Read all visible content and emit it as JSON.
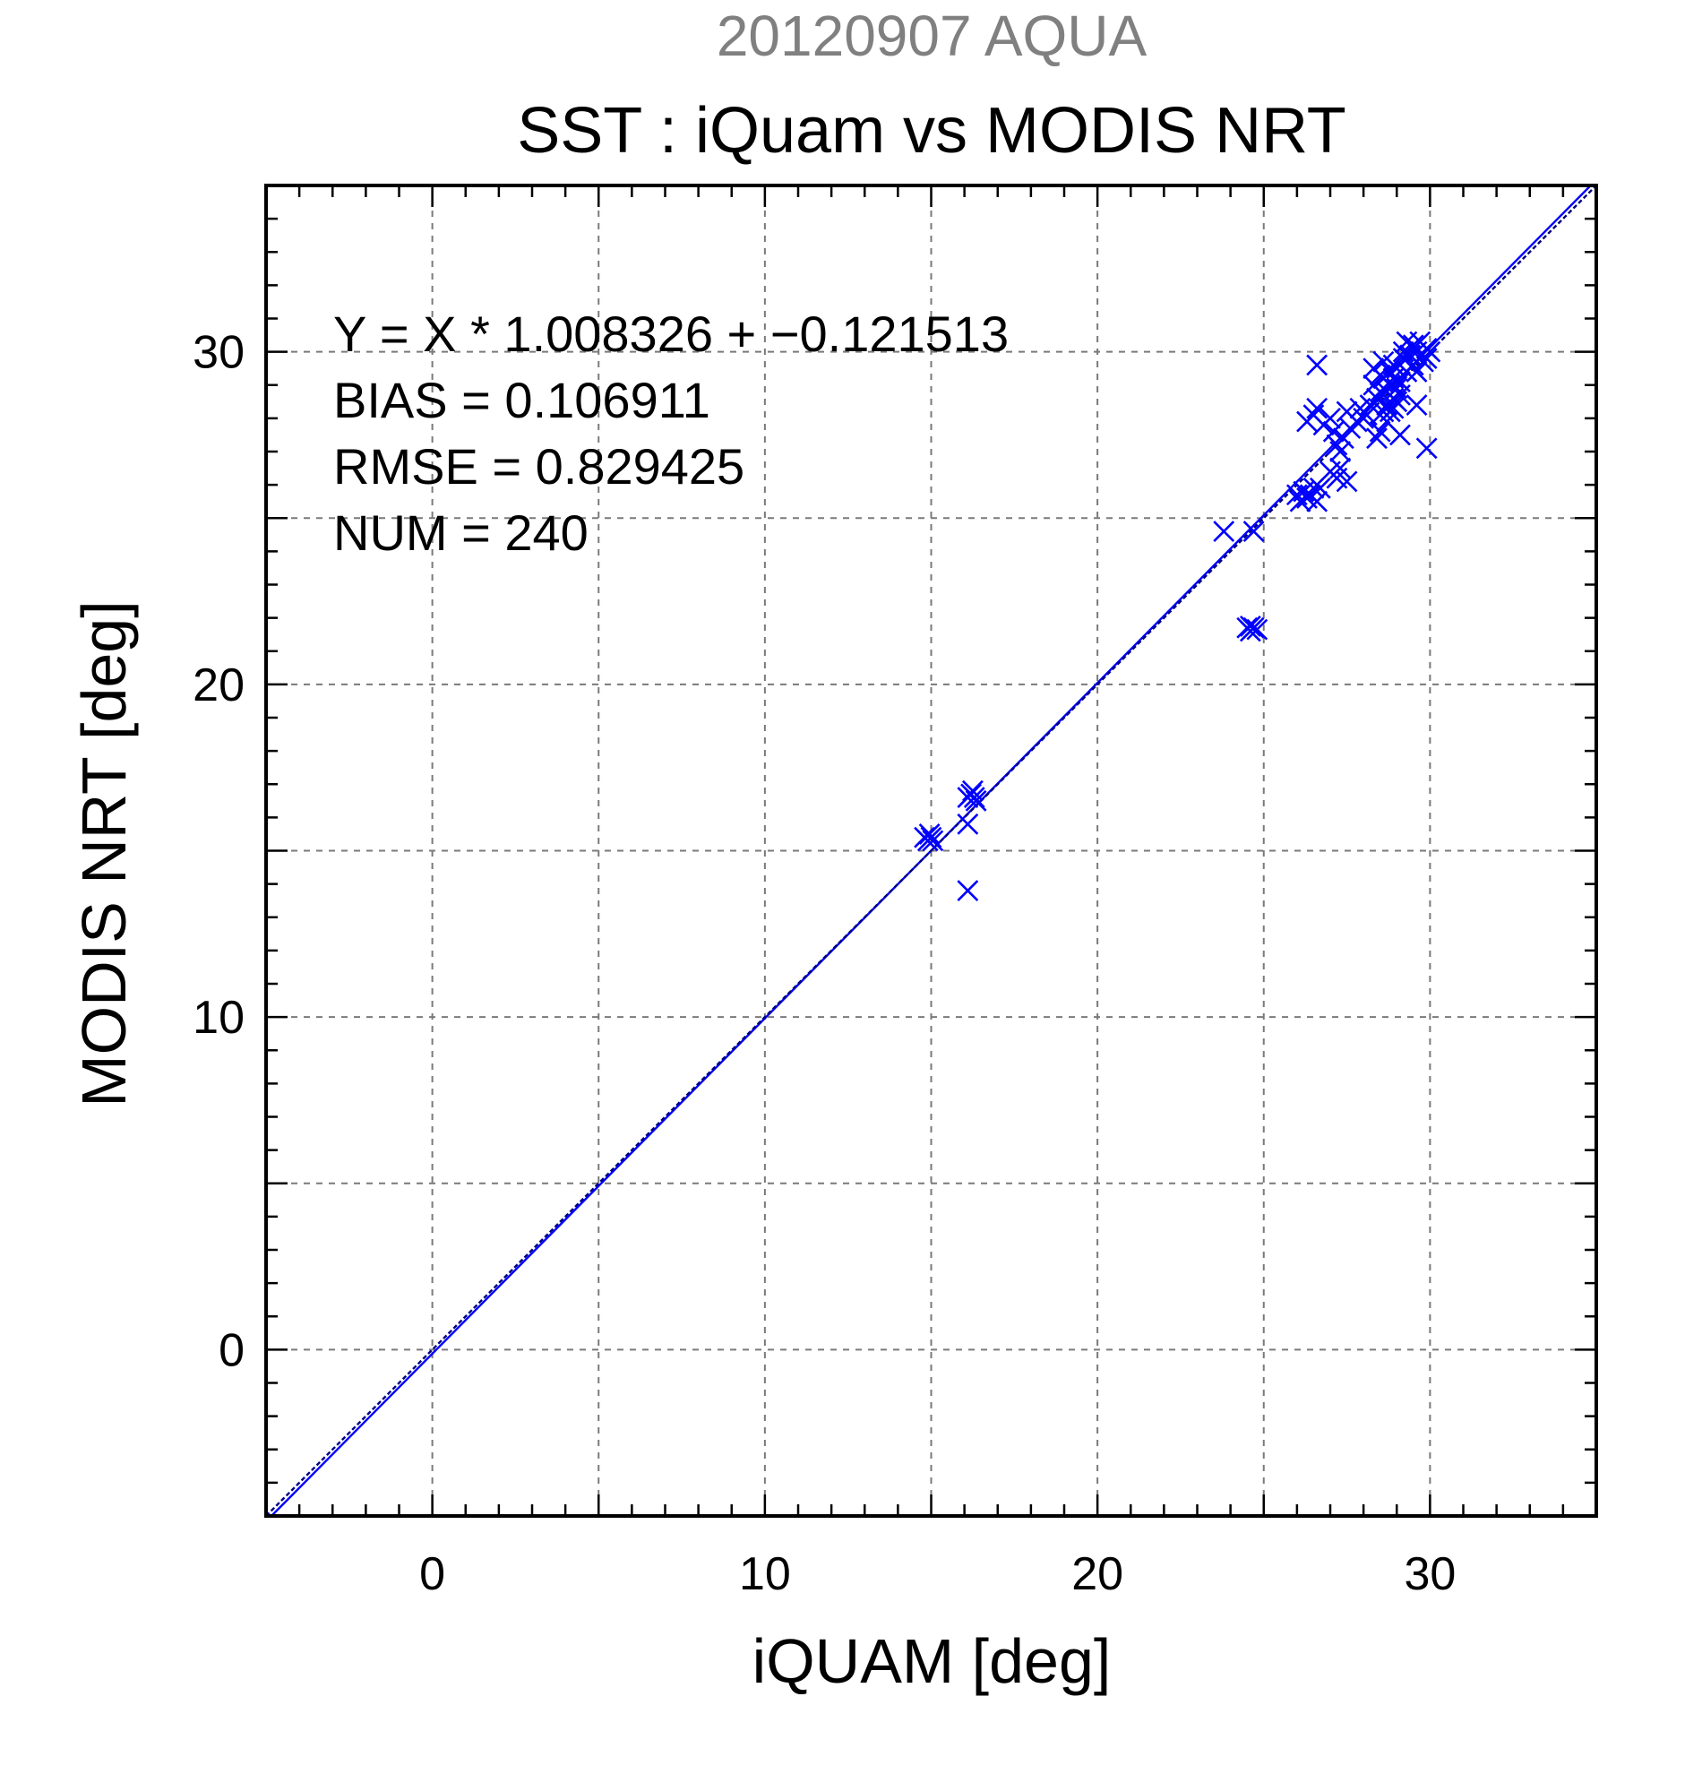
{
  "chart_data": {
    "type": "scatter",
    "supertitle": "20120907 AQUA",
    "title": "SST : iQuam vs MODIS NRT",
    "xlabel": "iQUAM [deg]",
    "ylabel": "MODIS NRT [deg]",
    "xlim": [
      -5,
      35
    ],
    "ylim": [
      -5,
      35
    ],
    "xticks": [
      "0",
      "10",
      "20",
      "30"
    ],
    "yticks": [
      "0",
      "10",
      "20",
      "30"
    ],
    "grid": true,
    "stats": {
      "equation": "Y = X * 1.008326 + −0.121513",
      "bias": "BIAS = 0.106911",
      "rmse": "RMSE = 0.829425",
      "num": "NUM = 240"
    },
    "lines": [
      {
        "kind": "regression",
        "slope": 1.008326,
        "intercept": -0.121513,
        "color": "#0000ff"
      },
      {
        "kind": "one-to-one",
        "slope": 1.0,
        "intercept": 0.0,
        "color": "#000080"
      }
    ],
    "marker_color": "#0000ff",
    "marker": "x",
    "points": [
      [
        14.8,
        15.4
      ],
      [
        14.9,
        15.3
      ],
      [
        15.0,
        15.4
      ],
      [
        14.95,
        15.5
      ],
      [
        15.05,
        15.3
      ],
      [
        16.2,
        16.7
      ],
      [
        16.3,
        16.6
      ],
      [
        16.1,
        16.6
      ],
      [
        16.25,
        16.8
      ],
      [
        16.35,
        16.5
      ],
      [
        16.1,
        15.8
      ],
      [
        16.1,
        13.8
      ],
      [
        23.8,
        24.6
      ],
      [
        24.7,
        24.6
      ],
      [
        24.5,
        21.7
      ],
      [
        24.6,
        21.6
      ],
      [
        24.7,
        21.7
      ],
      [
        24.8,
        21.65
      ],
      [
        24.6,
        21.75
      ],
      [
        26.6,
        29.6
      ],
      [
        26.0,
        25.7
      ],
      [
        26.2,
        25.8
      ],
      [
        26.3,
        25.6
      ],
      [
        26.4,
        25.7
      ],
      [
        26.5,
        25.9
      ],
      [
        26.6,
        25.5
      ],
      [
        26.1,
        25.5
      ],
      [
        26.7,
        25.9
      ],
      [
        27.0,
        26.4
      ],
      [
        27.3,
        26.5
      ],
      [
        27.2,
        26.2
      ],
      [
        27.5,
        26.1
      ],
      [
        26.3,
        27.9
      ],
      [
        26.5,
        28.1
      ],
      [
        26.8,
        27.8
      ],
      [
        27.0,
        28.0
      ],
      [
        26.6,
        28.3
      ],
      [
        27.1,
        27.6
      ],
      [
        27.2,
        27.2
      ],
      [
        27.4,
        27.4
      ],
      [
        27.5,
        28.2
      ],
      [
        27.6,
        27.7
      ],
      [
        27.8,
        27.9
      ],
      [
        27.9,
        28.3
      ],
      [
        28.0,
        28.0
      ],
      [
        27.3,
        27.0
      ],
      [
        28.2,
        28.4
      ],
      [
        28.4,
        28.6
      ],
      [
        28.1,
        28.1
      ],
      [
        28.5,
        28.8
      ],
      [
        28.3,
        29.0
      ],
      [
        28.6,
        29.2
      ],
      [
        28.4,
        27.4
      ],
      [
        28.5,
        27.6
      ],
      [
        28.7,
        27.9
      ],
      [
        28.6,
        28.2
      ],
      [
        28.7,
        28.8
      ],
      [
        28.8,
        29.0
      ],
      [
        28.9,
        29.2
      ],
      [
        29.0,
        28.9
      ],
      [
        28.8,
        29.4
      ],
      [
        28.9,
        28.6
      ],
      [
        29.0,
        29.5
      ],
      [
        29.1,
        29.1
      ],
      [
        29.2,
        29.8
      ],
      [
        28.9,
        29.6
      ],
      [
        29.3,
        29.4
      ],
      [
        29.1,
        28.7
      ],
      [
        29.4,
        29.9
      ],
      [
        29.5,
        30.2
      ],
      [
        29.6,
        30.0
      ],
      [
        29.7,
        30.3
      ],
      [
        29.8,
        29.7
      ],
      [
        29.9,
        30.1
      ],
      [
        29.3,
        30.3
      ],
      [
        29.5,
        29.6
      ],
      [
        29.9,
        29.8
      ],
      [
        30.0,
        30.0
      ],
      [
        29.6,
        29.4
      ],
      [
        29.2,
        30.0
      ],
      [
        29.6,
        28.4
      ],
      [
        28.9,
        28.3
      ],
      [
        29.9,
        27.1
      ],
      [
        29.1,
        27.5
      ],
      [
        28.3,
        29.5
      ],
      [
        28.6,
        29.7
      ],
      [
        28.7,
        28.4
      ],
      [
        29.0,
        28.5
      ],
      [
        28.5,
        29.3
      ],
      [
        28.8,
        28.2
      ]
    ]
  }
}
